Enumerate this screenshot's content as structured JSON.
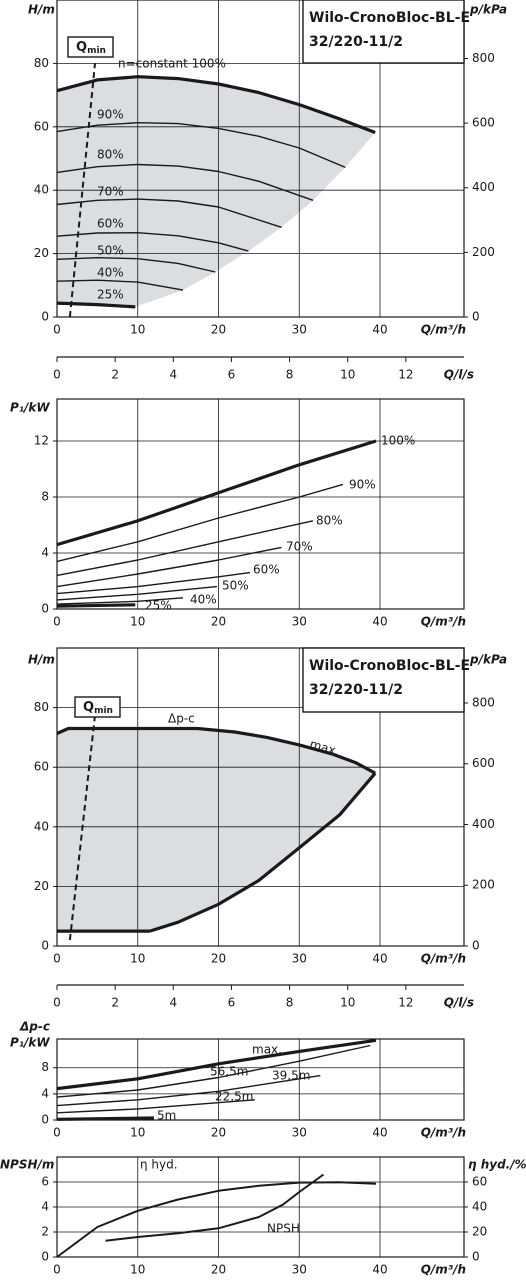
{
  "chart_data": [
    {
      "type": "line",
      "title": "Wilo-CronoBloc-BL-E",
      "subtitle": "32/220-11/2",
      "ylabel": "H/m",
      "y2label": "p/kPa",
      "xlabel": "Q/m³/h",
      "x2label": "Q/l/s",
      "xlim": [
        0,
        50.4
      ],
      "xticks": [
        0,
        10,
        20,
        30,
        40
      ],
      "x2lim": [
        0,
        14
      ],
      "x2ticks": [
        0,
        2,
        4,
        6,
        8,
        10,
        12
      ],
      "ylim": [
        0,
        100
      ],
      "yticks": [
        0,
        20,
        40,
        60,
        80
      ],
      "y2lim": [
        0,
        981
      ],
      "y2ticks": [
        0,
        200,
        400,
        600,
        800
      ],
      "grid": true,
      "region": {
        "color": "#dcdde0",
        "x": [
          0,
          5,
          10,
          15,
          20,
          25,
          30,
          35,
          39.4,
          35.7,
          31.7,
          27.8,
          23.7,
          19.6,
          15.6,
          9.7,
          5,
          0
        ],
        "values": [
          71.4,
          74.8,
          75.8,
          75.2,
          73.5,
          70.8,
          67,
          62.5,
          58.2,
          47.2,
          36.8,
          28.3,
          20.8,
          14.2,
          8.5,
          3.2,
          3.9,
          4.4
        ]
      },
      "qmin": {
        "label": "Q",
        "sub": "min",
        "x": [
          1.6,
          4.7
        ],
        "values": [
          0,
          80
        ]
      },
      "series": [
        {
          "name": "n=constant 100%",
          "color": "#1a1a1a",
          "x": [
            0,
            5,
            10,
            15,
            20,
            25,
            30,
            35,
            39.4
          ],
          "values": [
            71.4,
            74.8,
            75.8,
            75.2,
            73.5,
            70.8,
            67,
            62.5,
            58.2
          ]
        },
        {
          "name": "90%",
          "color": "#1a1a1a",
          "x": [
            0,
            5,
            10,
            15,
            20,
            25,
            30,
            35.7
          ],
          "values": [
            58.5,
            60.5,
            61.3,
            61,
            59.5,
            57,
            53.3,
            47.2
          ]
        },
        {
          "name": "80%",
          "color": "#1a1a1a",
          "x": [
            0,
            5,
            10,
            15,
            20,
            25,
            31.7
          ],
          "values": [
            45.6,
            47.4,
            48.1,
            47.6,
            45.9,
            42.8,
            36.8
          ]
        },
        {
          "name": "70%",
          "color": "#1a1a1a",
          "x": [
            0,
            5,
            10,
            15,
            20,
            27.8
          ],
          "values": [
            35.5,
            36.8,
            37.2,
            36.6,
            34.7,
            28.3
          ]
        },
        {
          "name": "60%",
          "color": "#1a1a1a",
          "x": [
            0,
            5,
            10,
            15,
            20,
            23.7
          ],
          "values": [
            25.5,
            26.5,
            26.6,
            25.6,
            23.4,
            20.8
          ]
        },
        {
          "name": "50%",
          "color": "#1a1a1a",
          "x": [
            0,
            5,
            10,
            15,
            19.6
          ],
          "values": [
            18.2,
            18.7,
            18.4,
            16.9,
            14.2
          ]
        },
        {
          "name": "40%",
          "color": "#1a1a1a",
          "x": [
            0,
            5,
            10,
            15.6
          ],
          "values": [
            11.3,
            11.6,
            11,
            8.5
          ]
        },
        {
          "name": "25%",
          "color": "#1a1a1a",
          "x": [
            0,
            5,
            9.7
          ],
          "values": [
            4.4,
            3.9,
            3.2
          ]
        }
      ]
    },
    {
      "type": "line",
      "ylabel": "P₁/kW",
      "xlabel": "Q/m³/h",
      "xlim": [
        0,
        50.4
      ],
      "xticks": [
        0,
        10,
        20,
        30,
        40
      ],
      "ylim": [
        0,
        15
      ],
      "yticks": [
        0,
        4,
        8,
        12
      ],
      "grid": true,
      "series": [
        {
          "name": "100%",
          "color": "#1a1a1a",
          "x": [
            0,
            10,
            20,
            30,
            39.5
          ],
          "values": [
            4.6,
            6.3,
            8.3,
            10.3,
            12
          ]
        },
        {
          "name": "90%",
          "color": "#1a1a1a",
          "x": [
            0,
            10,
            20,
            30,
            35.4
          ],
          "values": [
            3.4,
            4.8,
            6.5,
            8,
            8.9
          ]
        },
        {
          "name": "80%",
          "color": "#1a1a1a",
          "x": [
            0,
            10,
            20,
            31.7
          ],
          "values": [
            2.4,
            3.5,
            4.8,
            6.3
          ]
        },
        {
          "name": "70%",
          "color": "#1a1a1a",
          "x": [
            0,
            10,
            20,
            27.8
          ],
          "values": [
            1.6,
            2.5,
            3.5,
            4.4
          ]
        },
        {
          "name": "60%",
          "color": "#1a1a1a",
          "x": [
            0,
            10,
            20,
            23.9
          ],
          "values": [
            1.1,
            1.6,
            2.3,
            2.6
          ]
        },
        {
          "name": "50%",
          "color": "#1a1a1a",
          "x": [
            0,
            10,
            19.8
          ],
          "values": [
            0.65,
            1.05,
            1.6
          ]
        },
        {
          "name": "40%",
          "color": "#1a1a1a",
          "x": [
            0,
            10,
            15.6
          ],
          "values": [
            0.35,
            0.55,
            0.8
          ]
        },
        {
          "name": "25%",
          "color": "#1a1a1a",
          "x": [
            0,
            9.7
          ],
          "values": [
            0.2,
            0.3
          ]
        }
      ]
    },
    {
      "type": "line",
      "title": "Wilo-CronoBloc-BL-E",
      "subtitle": "32/220-11/2",
      "ylabel": "H/m",
      "y2label": "p/kPa",
      "xlabel": "Q/m³/h",
      "x2label": "Q/l/s",
      "xlim": [
        0,
        50.4
      ],
      "xticks": [
        0,
        10,
        20,
        30,
        40
      ],
      "x2lim": [
        0,
        14
      ],
      "x2ticks": [
        0,
        2,
        4,
        6,
        8,
        10,
        12
      ],
      "ylim": [
        0,
        100
      ],
      "yticks": [
        0,
        20,
        40,
        60,
        80
      ],
      "y2lim": [
        0,
        981
      ],
      "y2ticks": [
        0,
        200,
        400,
        600,
        800
      ],
      "grid": true,
      "region": {
        "color": "#dcdde0",
        "x": [
          0,
          1.4,
          17.4,
          22,
          26,
          30,
          34,
          37,
          39.4,
          35,
          30,
          25,
          20,
          15,
          11.5,
          0
        ],
        "values": [
          71.3,
          73,
          73,
          71.8,
          70,
          67.5,
          64.5,
          61.5,
          58,
          44,
          33,
          22,
          14,
          8,
          5,
          5
        ]
      },
      "qmin": {
        "label": "Q",
        "sub": "min",
        "x": [
          1.6,
          4.7
        ],
        "values": [
          2,
          77.4
        ]
      },
      "series": [
        {
          "name": "Δp-c",
          "color": "#1a1a1a",
          "x": [
            0,
            1.4,
            17.4
          ],
          "values": [
            71.3,
            73,
            73
          ]
        },
        {
          "name": "max.",
          "color": "#1a1a1a",
          "x": [
            17.4,
            22,
            26,
            30,
            34,
            37,
            39.4
          ],
          "values": [
            73,
            71.8,
            70,
            67.5,
            64.5,
            61.5,
            58
          ]
        },
        {
          "color": "#1a1a1a",
          "x": [
            0,
            11.5
          ],
          "values": [
            5,
            5
          ]
        },
        {
          "color": "#1a1a1a",
          "x": [
            11.5,
            15,
            20,
            25,
            30,
            35,
            39.4
          ],
          "values": [
            5,
            8,
            14,
            22,
            33,
            44,
            58
          ]
        }
      ]
    },
    {
      "type": "line",
      "yheader": "Δp-c",
      "ylabel": "P₁/kW",
      "xlabel": "Q/m³/h",
      "xlim": [
        0,
        50.4
      ],
      "xticks": [
        0,
        10,
        20,
        30,
        40
      ],
      "ylim": [
        0,
        12.4
      ],
      "yticks": [
        0,
        4,
        8
      ],
      "grid": true,
      "series": [
        {
          "name": "max.",
          "color": "#1a1a1a",
          "x": [
            0,
            10,
            20,
            30,
            39.5
          ],
          "values": [
            4.8,
            6.3,
            8.6,
            10.5,
            12.2
          ]
        },
        {
          "name": "56,5m",
          "color": "#1a1a1a",
          "x": [
            0,
            10,
            20,
            30,
            38.8
          ],
          "values": [
            3.5,
            4.6,
            6.5,
            9,
            11.4
          ]
        },
        {
          "name": "39,5m",
          "color": "#1a1a1a",
          "x": [
            0,
            10,
            20,
            32.6
          ],
          "values": [
            2.2,
            3.1,
            4.4,
            6.8
          ]
        },
        {
          "name": "22,5m",
          "color": "#1a1a1a",
          "x": [
            0,
            10,
            24.5
          ],
          "values": [
            1.1,
            1.7,
            3.1
          ]
        },
        {
          "name": "5m",
          "color": "#1a1a1a",
          "x": [
            0,
            12
          ],
          "values": [
            0.1,
            0.3
          ]
        }
      ]
    },
    {
      "type": "line",
      "ylabel": "NPSH/m",
      "y2label": "η hyd./%",
      "xlabel": "Q/m³/h",
      "xlim": [
        0,
        50.4
      ],
      "xticks": [
        0,
        10,
        20,
        30,
        40
      ],
      "ylim": [
        0,
        8
      ],
      "yticks": [
        0,
        2,
        4,
        6
      ],
      "y2lim": [
        0,
        80
      ],
      "y2ticks": [
        0,
        20,
        40,
        60
      ],
      "grid": true,
      "series": [
        {
          "name": "η hyd.",
          "color": "#1a1a1a",
          "axis": "y2",
          "x": [
            0,
            5,
            10,
            15,
            20,
            25,
            30,
            35,
            39.5
          ],
          "values": [
            0,
            24,
            37,
            46,
            53,
            57,
            59.5,
            59.8,
            58.6
          ]
        },
        {
          "name": "NPSH",
          "color": "#1a1a1a",
          "x": [
            6,
            10,
            15,
            20,
            25,
            28,
            30,
            33
          ],
          "values": [
            1.3,
            1.6,
            1.9,
            2.3,
            3.2,
            4.2,
            5.2,
            6.6
          ]
        }
      ]
    }
  ]
}
